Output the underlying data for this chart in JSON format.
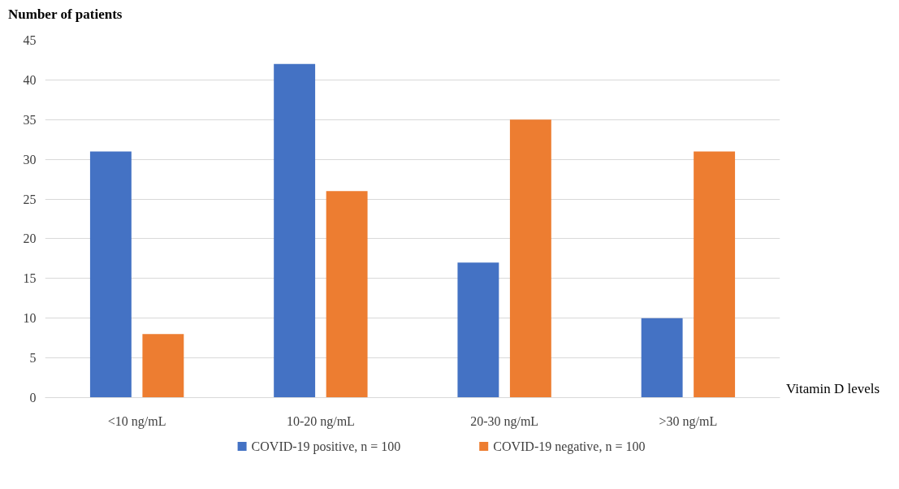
{
  "chart_data": {
    "type": "bar",
    "ylabel": "Number of patients",
    "xlabel": "Vitamin D levels",
    "categories": [
      "<10 ng/mL",
      "10-20 ng/mL",
      "20-30 ng/mL",
      ">30 ng/mL"
    ],
    "series": [
      {
        "name": "COVID-19 positive, n = 100",
        "color": "#4472c4",
        "values": [
          31,
          42,
          17,
          10
        ]
      },
      {
        "name": "COVID-19 negative, n = 100",
        "color": "#ed7d31",
        "values": [
          8,
          26,
          35,
          31
        ]
      }
    ],
    "ylim": [
      0,
      45
    ],
    "yticks": [
      0,
      5,
      10,
      15,
      20,
      25,
      30,
      35,
      40,
      45
    ],
    "grid": "y",
    "legend": "bottom"
  }
}
